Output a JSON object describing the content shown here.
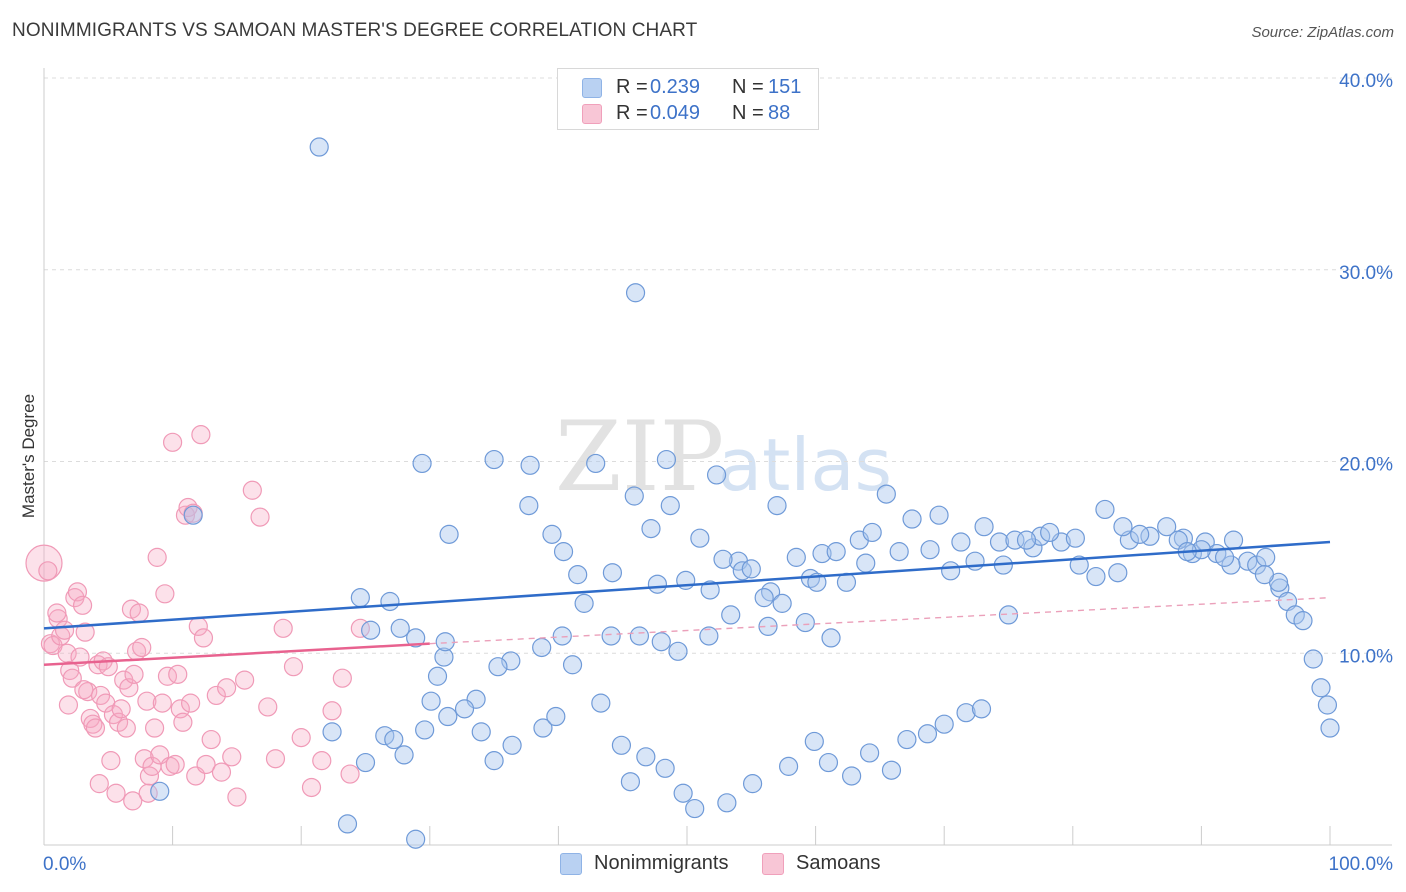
{
  "title": "NONIMMIGRANTS VS SAMOAN MASTER'S DEGREE CORRELATION CHART",
  "source": "Source: ZipAtlas.com",
  "watermark": {
    "zip": "ZIP",
    "atlas": "atlas"
  },
  "colors": {
    "blue": "#3d72c8",
    "blue_fill": "#a9c6ee",
    "pink": "#e8628f",
    "pink_fill": "#f5b4c8",
    "grid": "#d9d9d9"
  },
  "legend_top": {
    "rows": [
      {
        "r_label": "R =",
        "r_value": "0.239",
        "n_label": "N =",
        "n_value": "151",
        "series": "Nonimmigrants"
      },
      {
        "r_label": "R =",
        "r_value": "0.049",
        "n_label": "N =",
        "n_value": "88",
        "series": "Samoans"
      }
    ]
  },
  "legend_bottom": [
    "Nonimmigrants",
    "Samoans"
  ],
  "chart_data": {
    "type": "scatter",
    "title": "NONIMMIGRANTS VS SAMOAN MASTER'S DEGREE CORRELATION CHART",
    "xlabel": "",
    "ylabel": "Master's Degree",
    "xlim": [
      0,
      100
    ],
    "ylim": [
      0,
      40
    ],
    "x_tick_labels": [
      "0.0%",
      "100.0%"
    ],
    "y_ticks": [
      10,
      20,
      30,
      40
    ],
    "y_tick_labels": [
      "10.0%",
      "20.0%",
      "30.0%",
      "40.0%"
    ],
    "grid": true,
    "legend": "bottom-center",
    "series": [
      {
        "name": "Nonimmigrants",
        "color": "#3d72c8",
        "trend": {
          "x": [
            0,
            100
          ],
          "y": [
            11.3,
            15.8
          ]
        },
        "points": [
          [
            21.4,
            36.4
          ],
          [
            46.0,
            28.8
          ],
          [
            11.6,
            17.2
          ],
          [
            29.4,
            19.9
          ],
          [
            35.0,
            20.1
          ],
          [
            37.8,
            19.8
          ],
          [
            42.9,
            19.9
          ],
          [
            48.4,
            20.1
          ],
          [
            52.3,
            19.3
          ],
          [
            31.5,
            16.2
          ],
          [
            37.7,
            17.7
          ],
          [
            39.5,
            16.2
          ],
          [
            45.9,
            18.2
          ],
          [
            47.2,
            16.5
          ],
          [
            48.7,
            17.7
          ],
          [
            51.0,
            16.0
          ],
          [
            57.0,
            17.7
          ],
          [
            54.0,
            14.8
          ],
          [
            40.4,
            15.3
          ],
          [
            41.5,
            14.1
          ],
          [
            44.2,
            14.2
          ],
          [
            47.7,
            13.6
          ],
          [
            49.9,
            13.8
          ],
          [
            51.8,
            13.3
          ],
          [
            52.8,
            14.9
          ],
          [
            54.3,
            14.3
          ],
          [
            55.0,
            14.4
          ],
          [
            56.5,
            13.2
          ],
          [
            57.4,
            12.6
          ],
          [
            59.6,
            13.9
          ],
          [
            60.5,
            15.2
          ],
          [
            61.6,
            15.3
          ],
          [
            63.4,
            15.9
          ],
          [
            64.4,
            16.3
          ],
          [
            66.5,
            15.3
          ],
          [
            68.9,
            15.4
          ],
          [
            70.5,
            14.3
          ],
          [
            72.4,
            14.8
          ],
          [
            74.3,
            15.8
          ],
          [
            75.5,
            15.9
          ],
          [
            76.9,
            15.5
          ],
          [
            77.5,
            16.1
          ],
          [
            79.1,
            15.8
          ],
          [
            80.5,
            14.6
          ],
          [
            81.8,
            14.0
          ],
          [
            83.5,
            14.2
          ],
          [
            84.4,
            15.9
          ],
          [
            86.0,
            16.1
          ],
          [
            87.3,
            16.6
          ],
          [
            88.6,
            16.0
          ],
          [
            89.3,
            15.2
          ],
          [
            90.3,
            15.8
          ],
          [
            91.2,
            15.2
          ],
          [
            92.5,
            15.9
          ],
          [
            93.6,
            14.8
          ],
          [
            94.3,
            14.6
          ],
          [
            95.0,
            15.0
          ],
          [
            96.1,
            13.4
          ],
          [
            96.7,
            12.7
          ],
          [
            97.3,
            12.0
          ],
          [
            97.9,
            11.7
          ],
          [
            98.7,
            9.7
          ],
          [
            99.3,
            8.2
          ],
          [
            100.0,
            6.1
          ],
          [
            99.8,
            7.3
          ],
          [
            96.0,
            13.7
          ],
          [
            94.9,
            14.1
          ],
          [
            92.3,
            14.6
          ],
          [
            91.8,
            15.0
          ],
          [
            90.0,
            15.4
          ],
          [
            88.2,
            15.9
          ],
          [
            85.2,
            16.2
          ],
          [
            83.9,
            16.6
          ],
          [
            82.5,
            17.5
          ],
          [
            80.2,
            16.0
          ],
          [
            78.2,
            16.3
          ],
          [
            76.4,
            15.9
          ],
          [
            74.6,
            14.6
          ],
          [
            73.1,
            16.6
          ],
          [
            71.3,
            15.8
          ],
          [
            69.6,
            17.2
          ],
          [
            67.5,
            17.0
          ],
          [
            65.5,
            18.3
          ],
          [
            63.9,
            14.7
          ],
          [
            62.4,
            13.7
          ],
          [
            60.1,
            13.7
          ],
          [
            58.5,
            15.0
          ],
          [
            56.0,
            12.9
          ],
          [
            53.4,
            12.0
          ],
          [
            51.7,
            10.9
          ],
          [
            49.3,
            10.1
          ],
          [
            48.0,
            10.6
          ],
          [
            46.3,
            10.9
          ],
          [
            44.1,
            10.9
          ],
          [
            42.0,
            12.6
          ],
          [
            40.3,
            10.9
          ],
          [
            38.7,
            10.3
          ],
          [
            36.3,
            9.6
          ],
          [
            35.3,
            9.3
          ],
          [
            33.6,
            7.6
          ],
          [
            32.7,
            7.1
          ],
          [
            31.1,
            9.8
          ],
          [
            30.6,
            8.8
          ],
          [
            28.9,
            10.8
          ],
          [
            27.7,
            11.3
          ],
          [
            26.9,
            12.7
          ],
          [
            25.4,
            11.2
          ],
          [
            24.6,
            12.9
          ],
          [
            22.4,
            5.9
          ],
          [
            25.0,
            4.3
          ],
          [
            26.5,
            5.7
          ],
          [
            27.2,
            5.5
          ],
          [
            28.0,
            4.7
          ],
          [
            29.6,
            6.0
          ],
          [
            30.1,
            7.5
          ],
          [
            31.4,
            6.7
          ],
          [
            34.0,
            5.9
          ],
          [
            35.0,
            4.4
          ],
          [
            36.4,
            5.2
          ],
          [
            38.8,
            6.1
          ],
          [
            39.8,
            6.7
          ],
          [
            41.1,
            9.4
          ],
          [
            43.3,
            7.4
          ],
          [
            44.9,
            5.2
          ],
          [
            45.6,
            3.3
          ],
          [
            46.8,
            4.6
          ],
          [
            48.3,
            4.0
          ],
          [
            49.7,
            2.7
          ],
          [
            50.6,
            1.9
          ],
          [
            53.1,
            2.2
          ],
          [
            55.1,
            3.2
          ],
          [
            57.9,
            4.1
          ],
          [
            59.9,
            5.4
          ],
          [
            61.0,
            4.3
          ],
          [
            62.8,
            3.6
          ],
          [
            64.2,
            4.8
          ],
          [
            65.9,
            3.9
          ],
          [
            67.1,
            5.5
          ],
          [
            68.7,
            5.8
          ],
          [
            70.0,
            6.3
          ],
          [
            71.7,
            6.9
          ],
          [
            72.9,
            7.1
          ],
          [
            23.6,
            1.1
          ],
          [
            28.9,
            0.3
          ],
          [
            9.0,
            2.8
          ],
          [
            31.2,
            10.6
          ],
          [
            56.3,
            11.4
          ],
          [
            59.2,
            11.6
          ],
          [
            61.2,
            10.8
          ],
          [
            75.0,
            12.0
          ],
          [
            88.9,
            15.3
          ]
        ]
      },
      {
        "name": "Samoans",
        "color": "#e8628f",
        "trend": {
          "x": [
            0,
            30
          ],
          "y": [
            9.4,
            10.5
          ],
          "dashed_extension": {
            "x": [
              30,
              100
            ],
            "y": [
              10.5,
              12.9
            ]
          }
        },
        "points": [
          [
            0.0,
            14.7
          ],
          [
            0.3,
            14.3
          ],
          [
            0.5,
            10.5
          ],
          [
            0.7,
            10.4
          ],
          [
            1.1,
            11.8
          ],
          [
            1.3,
            10.9
          ],
          [
            1.6,
            11.2
          ],
          [
            1.8,
            10.0
          ],
          [
            2.0,
            9.1
          ],
          [
            2.2,
            8.7
          ],
          [
            2.4,
            12.9
          ],
          [
            2.6,
            13.2
          ],
          [
            2.8,
            9.8
          ],
          [
            3.0,
            12.5
          ],
          [
            3.2,
            11.1
          ],
          [
            3.4,
            8.0
          ],
          [
            3.6,
            6.6
          ],
          [
            3.8,
            6.3
          ],
          [
            4.0,
            6.1
          ],
          [
            4.2,
            9.4
          ],
          [
            4.4,
            7.8
          ],
          [
            4.6,
            9.6
          ],
          [
            4.8,
            7.4
          ],
          [
            5.0,
            9.3
          ],
          [
            5.2,
            4.4
          ],
          [
            5.4,
            6.8
          ],
          [
            5.6,
            2.7
          ],
          [
            5.8,
            6.4
          ],
          [
            6.0,
            7.1
          ],
          [
            6.2,
            8.6
          ],
          [
            6.4,
            6.1
          ],
          [
            6.6,
            8.2
          ],
          [
            6.8,
            12.3
          ],
          [
            7.0,
            8.9
          ],
          [
            7.2,
            10.1
          ],
          [
            7.4,
            12.1
          ],
          [
            7.6,
            10.3
          ],
          [
            7.8,
            4.5
          ],
          [
            8.0,
            7.5
          ],
          [
            8.2,
            3.6
          ],
          [
            8.4,
            4.1
          ],
          [
            8.6,
            6.1
          ],
          [
            8.8,
            15.0
          ],
          [
            9.0,
            4.7
          ],
          [
            9.2,
            7.4
          ],
          [
            9.4,
            13.1
          ],
          [
            9.6,
            8.8
          ],
          [
            9.8,
            4.1
          ],
          [
            10.0,
            21.0
          ],
          [
            10.2,
            4.2
          ],
          [
            10.4,
            8.9
          ],
          [
            10.6,
            7.1
          ],
          [
            10.8,
            6.4
          ],
          [
            11.0,
            17.2
          ],
          [
            11.2,
            17.6
          ],
          [
            11.4,
            7.4
          ],
          [
            11.6,
            17.3
          ],
          [
            11.8,
            3.6
          ],
          [
            12.0,
            11.4
          ],
          [
            12.2,
            21.4
          ],
          [
            12.4,
            10.8
          ],
          [
            12.6,
            4.2
          ],
          [
            13.0,
            5.5
          ],
          [
            13.4,
            7.8
          ],
          [
            13.8,
            3.8
          ],
          [
            14.2,
            8.2
          ],
          [
            14.6,
            4.6
          ],
          [
            15.0,
            2.5
          ],
          [
            15.6,
            8.6
          ],
          [
            16.2,
            18.5
          ],
          [
            16.8,
            17.1
          ],
          [
            17.4,
            7.2
          ],
          [
            18.0,
            4.5
          ],
          [
            18.6,
            11.3
          ],
          [
            19.4,
            9.3
          ],
          [
            20.0,
            5.6
          ],
          [
            20.8,
            3.0
          ],
          [
            21.6,
            4.4
          ],
          [
            22.4,
            7.0
          ],
          [
            23.2,
            8.7
          ],
          [
            23.8,
            3.7
          ],
          [
            24.6,
            11.3
          ],
          [
            8.1,
            2.7
          ],
          [
            6.9,
            2.3
          ],
          [
            4.3,
            3.2
          ],
          [
            3.1,
            8.1
          ],
          [
            1.9,
            7.3
          ],
          [
            1.0,
            12.1
          ]
        ]
      }
    ]
  }
}
